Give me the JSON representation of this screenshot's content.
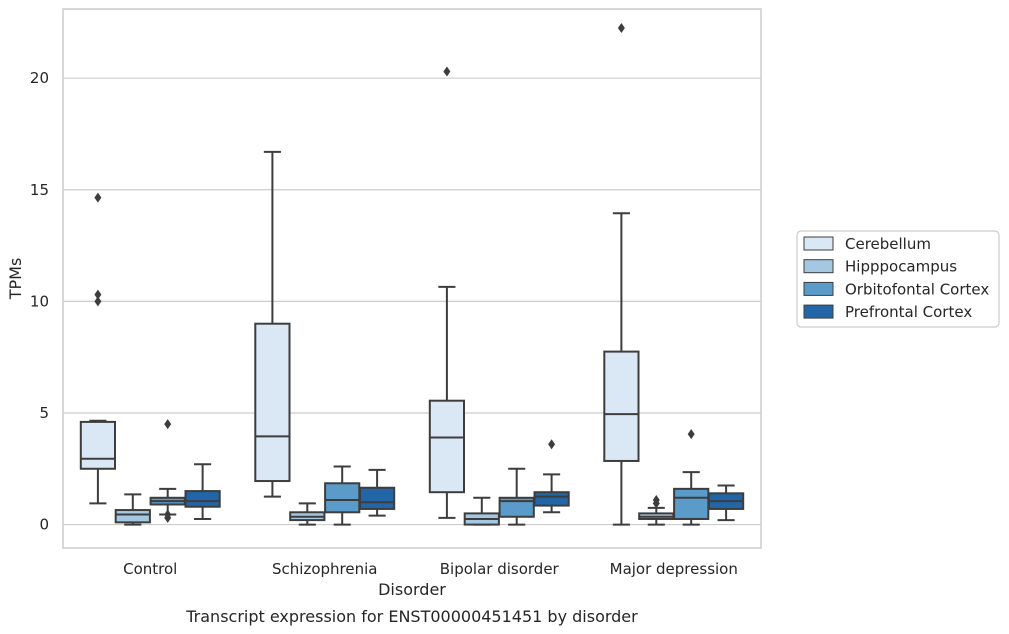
{
  "caption": "Transcript expression for ENST00000451451 by disorder",
  "chart_data": {
    "type": "box",
    "xlabel": "Disorder",
    "ylabel": "TPMs",
    "ylim": [
      -1.05,
      23.1
    ],
    "yticks": [
      0,
      5,
      10,
      15,
      20
    ],
    "grid": "horizontal",
    "legend_position": "right",
    "categories": [
      "Control",
      "Schizophrenia",
      "Bipolar disorder",
      "Major depression"
    ],
    "series": [
      {
        "name": "Cerebellum",
        "color": "#dae8f5",
        "boxes": [
          {
            "whislo": 0.95,
            "q1": 2.5,
            "med": 2.95,
            "q3": 4.6,
            "whishi": 4.65,
            "fliers": [
              10.0,
              10.3,
              14.65
            ]
          },
          {
            "whislo": 1.25,
            "q1": 1.95,
            "med": 3.95,
            "q3": 9.0,
            "whishi": 16.7,
            "fliers": []
          },
          {
            "whislo": 0.3,
            "q1": 1.45,
            "med": 3.9,
            "q3": 5.55,
            "whishi": 10.65,
            "fliers": [
              20.3
            ]
          },
          {
            "whislo": 0.0,
            "q1": 2.85,
            "med": 4.95,
            "q3": 7.75,
            "whishi": 13.95,
            "fliers": [
              22.25
            ]
          }
        ]
      },
      {
        "name": "Hipppocampus",
        "color": "#a5c8e2",
        "boxes": [
          {
            "whislo": 0.0,
            "q1": 0.1,
            "med": 0.45,
            "q3": 0.65,
            "whishi": 1.35,
            "fliers": []
          },
          {
            "whislo": 0.0,
            "q1": 0.2,
            "med": 0.35,
            "q3": 0.55,
            "whishi": 0.95,
            "fliers": []
          },
          {
            "whislo": 0.0,
            "q1": 0.0,
            "med": 0.25,
            "q3": 0.5,
            "whishi": 1.2,
            "fliers": []
          },
          {
            "whislo": 0.0,
            "q1": 0.25,
            "med": 0.35,
            "q3": 0.5,
            "whishi": 0.75,
            "fliers": [
              0.95,
              1.1
            ]
          }
        ]
      },
      {
        "name": "Orbitofontal Cortex",
        "color": "#5a9bc9",
        "boxes": [
          {
            "whislo": 0.45,
            "q1": 0.9,
            "med": 1.05,
            "q3": 1.2,
            "whishi": 1.6,
            "fliers": [
              0.3,
              0.45,
              4.5
            ]
          },
          {
            "whislo": 0.0,
            "q1": 0.55,
            "med": 1.1,
            "q3": 1.85,
            "whishi": 2.6,
            "fliers": []
          },
          {
            "whislo": 0.0,
            "q1": 0.35,
            "med": 1.05,
            "q3": 1.2,
            "whishi": 2.5,
            "fliers": []
          },
          {
            "whislo": 0.0,
            "q1": 0.25,
            "med": 1.2,
            "q3": 1.6,
            "whishi": 2.35,
            "fliers": [
              4.05
            ]
          }
        ]
      },
      {
        "name": "Prefrontal Cortex",
        "color": "#2366a8",
        "boxes": [
          {
            "whislo": 0.25,
            "q1": 0.8,
            "med": 1.05,
            "q3": 1.5,
            "whishi": 2.7,
            "fliers": []
          },
          {
            "whislo": 0.4,
            "q1": 0.7,
            "med": 1.0,
            "q3": 1.65,
            "whishi": 2.45,
            "fliers": []
          },
          {
            "whislo": 0.55,
            "q1": 0.85,
            "med": 1.25,
            "q3": 1.45,
            "whishi": 2.25,
            "fliers": [
              3.6
            ]
          },
          {
            "whislo": 0.2,
            "q1": 0.7,
            "med": 1.05,
            "q3": 1.4,
            "whishi": 1.75,
            "fliers": []
          }
        ]
      }
    ]
  }
}
